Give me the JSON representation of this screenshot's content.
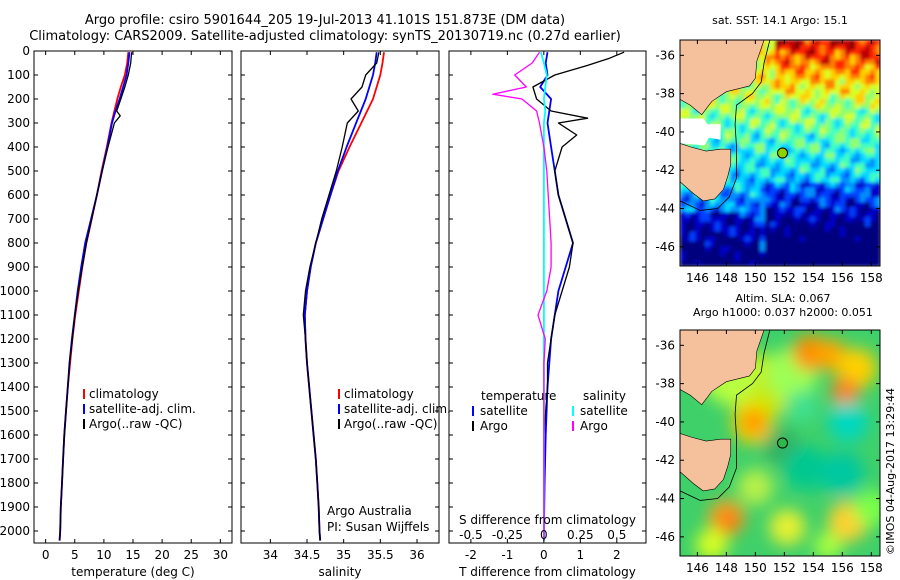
{
  "header": {
    "line1": "Argo profile: csiro 5901644_205 19-Jul-2013 41.101S 151.873E (DM data)",
    "line2": "Climatology: CARS2009. Satellite-adjusted climatology: synTS_20130719.nc (0.27d earlier)"
  },
  "credit": "©IMOS 04-Aug-2017 13:29:44",
  "colors": {
    "climatology": "#ff0000",
    "satellite": "#0000ff",
    "argo": "#000000",
    "sal_satellite": "#00ffff",
    "sal_argo": "#ff00ff",
    "land": "#f5c19c"
  },
  "chart_data": [
    {
      "type": "line",
      "id": "temperature",
      "xlabel": "temperature (deg C)",
      "xlim": [
        -2,
        32
      ],
      "xticks": [
        0,
        5,
        10,
        15,
        20,
        25,
        30
      ],
      "xticklabels": [
        "0",
        "5",
        "10",
        "15",
        "20",
        "25",
        "30"
      ],
      "ylim": [
        2050,
        0
      ],
      "yticks": [
        0,
        100,
        200,
        300,
        400,
        500,
        600,
        700,
        800,
        900,
        1000,
        1100,
        1200,
        1300,
        1400,
        1500,
        1600,
        1700,
        1800,
        1900,
        2000
      ],
      "yticklabels": [
        "0",
        "100",
        "200",
        "300",
        "400",
        "500",
        "600",
        "700",
        "800",
        "900",
        "1000",
        "1100",
        "1200",
        "1300",
        "1400",
        "1500",
        "1600",
        "1700",
        "1800",
        "1900",
        "2000"
      ],
      "legend": {
        "placement": "lower-middle",
        "entries": [
          "climatology",
          "satellite-adj. clim.",
          "Argo(..raw -QC)"
        ]
      },
      "series": [
        {
          "name": "climatology",
          "depth": [
            5,
            50,
            100,
            150,
            200,
            250,
            300,
            400,
            500,
            600,
            700,
            800,
            900,
            1000,
            1100,
            1200,
            1300,
            1400,
            1500,
            1600,
            1700,
            1800,
            1900,
            2000,
            2040
          ],
          "values": [
            14.2,
            14.0,
            13.6,
            12.9,
            12.3,
            11.8,
            11.3,
            10.5,
            9.6,
            8.8,
            7.9,
            7.0,
            6.3,
            5.7,
            5.1,
            4.6,
            4.2,
            3.8,
            3.5,
            3.2,
            3.0,
            2.8,
            2.6,
            2.5,
            2.4
          ]
        },
        {
          "name": "satellite-adj. clim.",
          "depth": [
            5,
            50,
            100,
            150,
            200,
            250,
            300,
            400,
            500,
            600,
            700,
            800,
            900,
            1000,
            1100,
            1200,
            1300,
            1400,
            1500,
            1600,
            1700,
            1800,
            1900,
            2000,
            2040
          ],
          "values": [
            14.4,
            14.2,
            13.9,
            13.3,
            12.7,
            12.0,
            11.4,
            10.6,
            9.7,
            8.8,
            7.8,
            6.8,
            6.1,
            5.5,
            5.0,
            4.5,
            4.1,
            3.8,
            3.5,
            3.2,
            3.0,
            2.8,
            2.6,
            2.5,
            2.4
          ]
        },
        {
          "name": "Argo(..raw -QC)",
          "depth": [
            5,
            20,
            50,
            100,
            150,
            200,
            250,
            270,
            300,
            400,
            500,
            600,
            700,
            800,
            900,
            1000,
            1100,
            1200,
            1300,
            1400,
            1500,
            1600,
            1700,
            1800,
            1900,
            2000,
            2040
          ],
          "values": [
            14.8,
            14.7,
            14.6,
            14.2,
            13.6,
            12.9,
            12.2,
            12.8,
            11.8,
            10.7,
            9.7,
            8.8,
            7.9,
            7.0,
            6.3,
            5.6,
            5.0,
            4.6,
            4.1,
            3.8,
            3.5,
            3.2,
            3.0,
            2.8,
            2.6,
            2.5,
            2.4
          ]
        }
      ]
    },
    {
      "type": "line",
      "id": "salinity",
      "xlabel": "salinity",
      "xlim": [
        33.6,
        36.3
      ],
      "xticks": [
        34,
        34.5,
        35,
        35.5,
        36
      ],
      "xticklabels": [
        "34",
        "34.5",
        "35",
        "35.5",
        "36"
      ],
      "ylim": [
        2050,
        0
      ],
      "legend": {
        "placement": "lower-middle",
        "entries": [
          "climatology",
          "satellite-adj. clim.",
          "Argo(..raw -QC)"
        ]
      },
      "annotation": {
        "line1": "Argo Australia",
        "line2": "PI: Susan Wijffels"
      },
      "series": [
        {
          "name": "climatology",
          "depth": [
            5,
            50,
            100,
            200,
            300,
            400,
            500,
            600,
            700,
            800,
            900,
            1000,
            1100,
            1200,
            1300,
            1400,
            1500,
            1600,
            1700,
            1800,
            1900,
            2000,
            2040
          ],
          "values": [
            35.55,
            35.53,
            35.5,
            35.4,
            35.24,
            35.08,
            34.93,
            34.82,
            34.72,
            34.62,
            34.55,
            34.5,
            34.47,
            34.48,
            34.5,
            34.53,
            34.56,
            34.59,
            34.62,
            34.64,
            34.66,
            34.67,
            34.68
          ]
        },
        {
          "name": "satellite-adj. clim.",
          "depth": [
            5,
            50,
            100,
            200,
            300,
            400,
            500,
            600,
            700,
            800,
            900,
            1000,
            1100,
            1200,
            1300,
            1400,
            1500,
            1600,
            1700,
            1800,
            1900,
            2000,
            2040
          ],
          "values": [
            35.45,
            35.43,
            35.4,
            35.3,
            35.17,
            35.04,
            34.92,
            34.82,
            34.72,
            34.62,
            34.55,
            34.5,
            34.47,
            34.48,
            34.5,
            34.53,
            34.56,
            34.59,
            34.62,
            34.64,
            34.66,
            34.67,
            34.68
          ]
        },
        {
          "name": "Argo(..raw -QC)",
          "depth": [
            5,
            50,
            100,
            150,
            200,
            250,
            300,
            400,
            500,
            600,
            700,
            800,
            900,
            1000,
            1100,
            1200,
            1300,
            1400,
            1500,
            1600,
            1700,
            1800,
            1900,
            2000,
            2040
          ],
          "values": [
            35.48,
            35.45,
            35.3,
            35.25,
            35.1,
            35.2,
            35.05,
            34.98,
            34.9,
            34.8,
            34.7,
            34.62,
            34.54,
            34.48,
            34.45,
            34.48,
            34.5,
            34.53,
            34.56,
            34.59,
            34.62,
            34.64,
            34.66,
            34.67,
            34.68
          ]
        }
      ]
    },
    {
      "type": "line",
      "id": "differences",
      "xlabel": "T difference from climatology",
      "xlabel_top": "S difference from climatology",
      "xlim": [
        -2.6,
        2.8
      ],
      "xticks": [
        -2,
        -1,
        0,
        1,
        2
      ],
      "xticklabels": [
        "-2",
        "-1",
        "0",
        "1",
        "2"
      ],
      "sticks": [
        -0.5,
        -0.25,
        0,
        0.25,
        0.5
      ],
      "sticklabels": [
        "-0.5",
        "-0.25",
        "0",
        "0.25",
        "0.5"
      ],
      "s_scale_per_T": 4,
      "ylim": [
        2050,
        0
      ],
      "legend": {
        "placement": "lower-middle",
        "col1_title": "temperature",
        "col2_title": "salinity",
        "entries": [
          "satellite",
          "Argo",
          "satellite",
          "Argo"
        ]
      },
      "series": [
        {
          "name": "T satellite",
          "var": "T",
          "depth": [
            5,
            50,
            100,
            150,
            200,
            300,
            400,
            500,
            600,
            700,
            800,
            900,
            1000,
            1200,
            1400,
            1600,
            1800,
            2000,
            2040
          ],
          "values": [
            0.1,
            0.05,
            0.1,
            -0.1,
            0.2,
            0.1,
            0.2,
            0.3,
            0.4,
            0.6,
            0.8,
            0.6,
            0.4,
            0.2,
            0.1,
            0.05,
            0.02,
            0.0,
            0.0
          ]
        },
        {
          "name": "T Argo",
          "var": "T",
          "depth": [
            5,
            30,
            60,
            100,
            150,
            200,
            250,
            280,
            300,
            350,
            400,
            500,
            600,
            700,
            800,
            900,
            1000,
            1100,
            1200,
            1300,
            1400,
            1500,
            1600,
            1800,
            2000,
            2040
          ],
          "values": [
            2.2,
            1.8,
            1.2,
            0.3,
            -0.3,
            -0.2,
            0.2,
            1.2,
            0.4,
            0.9,
            0.5,
            0.3,
            0.4,
            0.6,
            0.8,
            0.7,
            0.5,
            0.3,
            0.2,
            0.1,
            0.1,
            0.05,
            0.0,
            0.0,
            0.0,
            0.0
          ]
        },
        {
          "name": "S satellite",
          "var": "S",
          "depth": [
            5,
            50,
            100,
            150,
            200,
            250,
            300,
            400,
            500,
            600,
            700,
            800,
            900,
            1000,
            1200,
            1400,
            1600,
            1800,
            2000,
            2040
          ],
          "values": [
            -0.02,
            0.0,
            0.02,
            0.01,
            0.0,
            0.01,
            0.0,
            0.0,
            0.0,
            0.0,
            0.0,
            0.0,
            0.0,
            0.0,
            0.0,
            0.0,
            0.0,
            0.0,
            0.0,
            0.0
          ]
        },
        {
          "name": "S Argo",
          "var": "S",
          "depth": [
            5,
            50,
            100,
            150,
            180,
            200,
            250,
            300,
            400,
            500,
            600,
            700,
            800,
            900,
            1000,
            1100,
            1200,
            1300,
            1400,
            1600,
            1800,
            2000,
            2040
          ],
          "values": [
            -0.03,
            -0.08,
            -0.2,
            -0.12,
            -0.35,
            -0.15,
            -0.05,
            -0.03,
            0.0,
            0.02,
            0.03,
            0.04,
            0.05,
            0.05,
            0.02,
            -0.04,
            0.01,
            0.0,
            0.0,
            0.0,
            0.0,
            0.0,
            0.0
          ]
        }
      ]
    },
    {
      "type": "heatmap",
      "id": "sst-map",
      "title": "sat. SST: 14.1  Argo: 15.1",
      "xlim": [
        144.8,
        158.6
      ],
      "ylim": [
        -47.0,
        -35.2
      ],
      "xticks": [
        146,
        148,
        150,
        152,
        154,
        156,
        158
      ],
      "yticks": [
        -36,
        -38,
        -40,
        -42,
        -44,
        -46
      ],
      "xticklabels": [
        "146",
        "148",
        "150",
        "152",
        "154",
        "156",
        "158"
      ],
      "yticklabels": [
        "-36",
        "-38",
        "-40",
        "-42",
        "-44",
        "-46"
      ],
      "float_position": {
        "lon": 151.873,
        "lat": -41.101
      }
    },
    {
      "type": "heatmap",
      "id": "sla-map",
      "title": "Altim. SLA: 0.067",
      "subtitle": "Argo h1000: 0.037  h2000: 0.051",
      "xlim": [
        144.8,
        158.6
      ],
      "ylim": [
        -47.0,
        -35.2
      ],
      "xticks": [
        146,
        148,
        150,
        152,
        154,
        156,
        158
      ],
      "yticks": [
        -36,
        -38,
        -40,
        -42,
        -44,
        -46
      ],
      "xticklabels": [
        "146",
        "148",
        "150",
        "152",
        "154",
        "156",
        "158"
      ],
      "yticklabels": [
        "-36",
        "-38",
        "-40",
        "-42",
        "-44",
        "-46"
      ],
      "float_position": {
        "lon": 151.873,
        "lat": -41.101
      }
    }
  ]
}
